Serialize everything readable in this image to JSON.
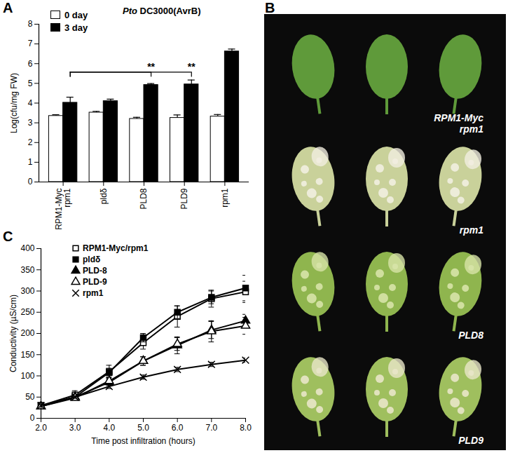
{
  "chart_data": [
    {
      "panel": "A",
      "type": "bar",
      "title": "Pto DC3000(AvrB)",
      "categories": [
        "RPM1-Myc\nrpm1",
        "pldδ",
        "PLD8",
        "PLD9",
        "rpm1"
      ],
      "series": [
        {
          "name": "0 day",
          "color": "#ffffff",
          "values": [
            3.35,
            3.52,
            3.2,
            3.25,
            3.32
          ],
          "errors": [
            0.06,
            0.06,
            0.08,
            0.15,
            0.1
          ]
        },
        {
          "name": "3 day",
          "color": "#000000",
          "values": [
            4.02,
            4.1,
            4.92,
            4.95,
            6.62
          ],
          "errors": [
            0.28,
            0.1,
            0.07,
            0.22,
            0.12
          ]
        }
      ],
      "ylabel": "Log(cfu/mg FW)",
      "ylim": [
        0,
        8
      ],
      "yticks": [
        0,
        1,
        2,
        3,
        4,
        5,
        6,
        7,
        8
      ],
      "legend": "top-left",
      "annotations": [
        {
          "text": "**",
          "series": "3 day",
          "from": "RPM1-Myc\nrpm1",
          "to": "PLD8"
        },
        {
          "text": "**",
          "series": "3 day",
          "from": "RPM1-Myc\nrpm1",
          "to": "PLD9"
        }
      ]
    },
    {
      "panel": "B",
      "type": "image",
      "labels": [
        "RPM1-Myc\nrpm1",
        "rpm1",
        "PLD8",
        "PLD9"
      ]
    },
    {
      "panel": "C",
      "type": "line",
      "xlabel": "Time post infiltration (hours)",
      "ylabel": "Conductivity (µS/cm)",
      "x": [
        2,
        3,
        4,
        5,
        6,
        7,
        8
      ],
      "xlim": [
        2,
        8
      ],
      "xticks": [
        2,
        3,
        4,
        5,
        6,
        7,
        8
      ],
      "ylim": [
        0,
        400
      ],
      "yticks": [
        0,
        50,
        100,
        150,
        200,
        250,
        300,
        350,
        400
      ],
      "legend": "top-left",
      "series": [
        {
          "name": "RPM1-Myc/rpm1",
          "color": "#000000",
          "marker": "square-open",
          "values": [
            30,
            55,
            110,
            178,
            240,
            282,
            298
          ],
          "errors": [
            5,
            10,
            15,
            15,
            25,
            20,
            25
          ]
        },
        {
          "name": "pldδ",
          "color": "#000000",
          "marker": "square",
          "values": [
            30,
            50,
            108,
            190,
            250,
            285,
            307
          ],
          "errors": [
            5,
            5,
            10,
            10,
            15,
            15,
            30
          ]
        },
        {
          "name": "PLD-8",
          "color": "#000000",
          "marker": "triangle",
          "values": [
            28,
            50,
            85,
            135,
            172,
            208,
            230
          ],
          "errors": [
            5,
            5,
            8,
            10,
            20,
            20,
            15
          ]
        },
        {
          "name": "PLD-9",
          "color": "#000000",
          "marker": "triangle-open",
          "values": [
            28,
            48,
            88,
            135,
            175,
            205,
            218
          ],
          "errors": [
            5,
            5,
            8,
            10,
            15,
            25,
            20
          ]
        },
        {
          "name": "rpm1",
          "color": "#000000",
          "marker": "times",
          "values": [
            30,
            50,
            75,
            97,
            115,
            127,
            137
          ],
          "errors": [
            3,
            3,
            5,
            5,
            5,
            5,
            5
          ]
        }
      ]
    }
  ]
}
